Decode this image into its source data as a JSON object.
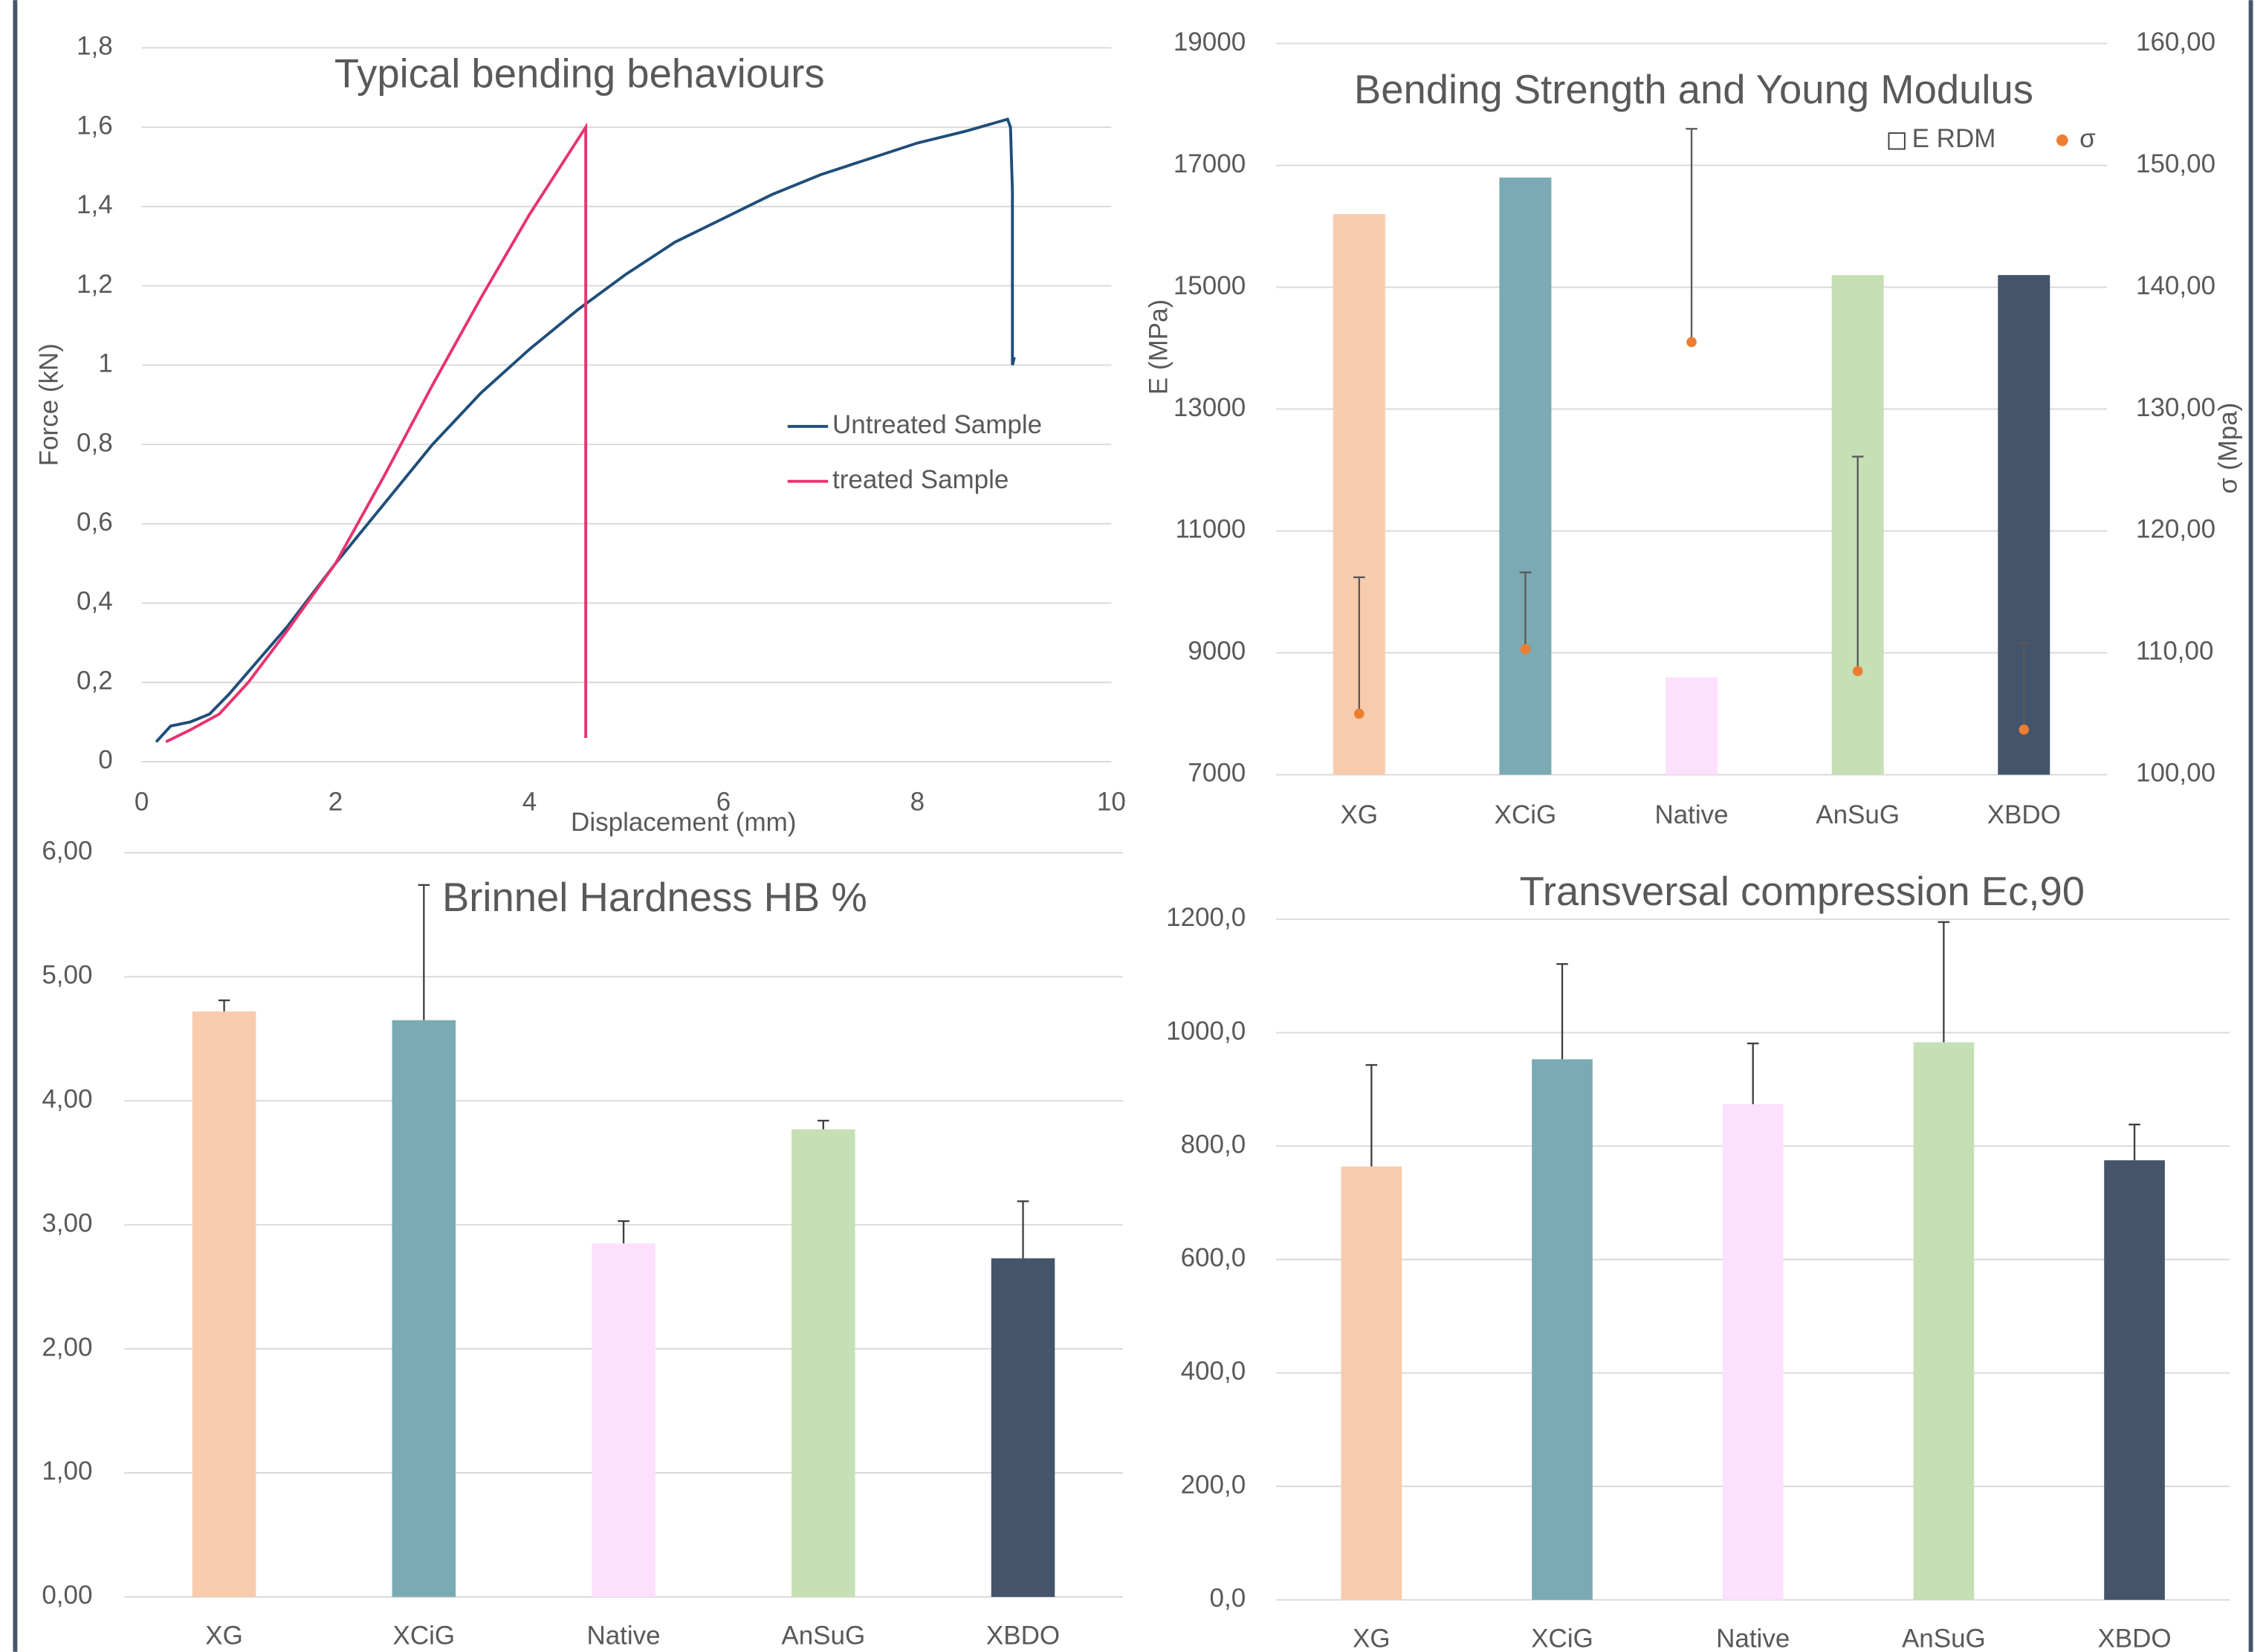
{
  "chart_data": [
    {
      "type": "line",
      "title": "Typical bending behaviours",
      "x_label": "Displacement (mm)",
      "y_label": "Force (kN)",
      "xlim": [
        0,
        10
      ],
      "xticks": [
        0,
        2,
        4,
        6,
        8,
        10
      ],
      "ylim": [
        0,
        1.8
      ],
      "yticks": [
        0,
        {
          "value": 0.2,
          "label": "0,2"
        },
        {
          "value": 0.4,
          "label": "0,4"
        },
        {
          "value": 0.6,
          "label": "0,6"
        },
        {
          "value": 0.8,
          "label": "0,8"
        },
        1,
        {
          "value": 1.2,
          "label": "1,2"
        },
        {
          "value": 1.4,
          "label": "1,4"
        },
        {
          "value": 1.6,
          "label": "1,6"
        },
        {
          "value": 1.8,
          "label": "1,8"
        }
      ],
      "grid": true,
      "legend": "right",
      "series": [
        {
          "name": "Untreated Sample",
          "color": "#1f4e79",
          "x": [
            0.15,
            0.3,
            0.5,
            0.7,
            0.9,
            1.5,
            2,
            2.5,
            3,
            3.5,
            4,
            4.5,
            5,
            5.5,
            6,
            6.5,
            7,
            7.5,
            8,
            8.5,
            8.93,
            8.96,
            8.98,
            8.98,
            9.0
          ],
          "values": [
            0.05,
            0.09,
            0.1,
            0.12,
            0.17,
            0.34,
            0.5,
            0.65,
            0.8,
            0.93,
            1.04,
            1.14,
            1.23,
            1.31,
            1.37,
            1.43,
            1.48,
            1.52,
            1.56,
            1.59,
            1.62,
            1.6,
            1.44,
            1.0,
            1.02
          ]
        },
        {
          "name": "treated Sample",
          "color": "#e8336e",
          "x": [
            0.25,
            0.5,
            0.8,
            1.1,
            1.5,
            2,
            2.5,
            3,
            3.5,
            4,
            4.58,
            4.58
          ],
          "values": [
            0.05,
            0.08,
            0.12,
            0.2,
            0.33,
            0.5,
            0.72,
            0.95,
            1.17,
            1.38,
            1.6,
            0.06
          ]
        }
      ]
    },
    {
      "type": "combo",
      "title": "Bending Strength and Young Modulus",
      "y_label": "E (MPa)",
      "y2_label": "σ (Mpa)",
      "categories": [
        "XG",
        "XCiG",
        "Native",
        "AnSuG",
        "XBDO"
      ],
      "ylim": [
        7000,
        19000
      ],
      "yticks": [
        7000,
        9000,
        11000,
        13000,
        15000,
        17000,
        19000
      ],
      "y2lim": [
        100,
        160
      ],
      "y2ticks": [
        {
          "value": 100,
          "label": "100,00"
        },
        {
          "value": 110,
          "label": "110,00"
        },
        {
          "value": 120,
          "label": "120,00"
        },
        {
          "value": 130,
          "label": "130,00"
        },
        {
          "value": 140,
          "label": "140,00"
        },
        {
          "value": 150,
          "label": "150,00"
        },
        {
          "value": 160,
          "label": "160,00"
        }
      ],
      "grid": true,
      "legend": "top-right",
      "series": [
        {
          "name": "E RDM",
          "type": "bar",
          "colors": [
            "#f8cbad",
            "#7aaab4",
            "#fde0fd",
            "#c5e0b4",
            "#44546a"
          ],
          "values": [
            16200,
            16800,
            8600,
            15200,
            15200
          ]
        },
        {
          "name": "σ",
          "type": "scatter",
          "axis": "y2",
          "color": "#ed7d31",
          "values": [
            105.0,
            110.3,
            135.5,
            108.5,
            103.7
          ],
          "errors": [
            11.2,
            6.3,
            17.5,
            17.6,
            7.1
          ]
        }
      ]
    },
    {
      "type": "bar",
      "title": "Brinnel Hardness HB %",
      "categories": [
        "XG",
        "XCiG",
        "Native",
        "AnSuG",
        "XBDO"
      ],
      "values": [
        4.72,
        4.65,
        2.85,
        3.77,
        2.73
      ],
      "errors": [
        0.09,
        1.09,
        0.18,
        0.07,
        0.46
      ],
      "colors": [
        "#f8cbad",
        "#7aaab4",
        "#fde0fd",
        "#c5e0b4",
        "#44546a"
      ],
      "ylim": [
        0,
        6
      ],
      "yticks": [
        {
          "value": 0,
          "label": "0,00"
        },
        {
          "value": 1,
          "label": "1,00"
        },
        {
          "value": 2,
          "label": "2,00"
        },
        {
          "value": 3,
          "label": "3,00"
        },
        {
          "value": 4,
          "label": "4,00"
        },
        {
          "value": 5,
          "label": "5,00"
        },
        {
          "value": 6,
          "label": "6,00"
        }
      ],
      "grid": true
    },
    {
      "type": "bar",
      "title": "Transversal compression Ec,90",
      "categories": [
        "XG",
        "XCiG",
        "Native",
        "AnSuG",
        "XBDO"
      ],
      "values": [
        764,
        953,
        874,
        983,
        775
      ],
      "errors": [
        179,
        168,
        107,
        212,
        63
      ],
      "colors": [
        "#f8cbad",
        "#7aaab4",
        "#fde0fd",
        "#c5e0b4",
        "#44546a"
      ],
      "ylim": [
        0,
        1200
      ],
      "yticks": [
        {
          "value": 0,
          "label": "0,0"
        },
        {
          "value": 200,
          "label": "200,0"
        },
        {
          "value": 400,
          "label": "400,0"
        },
        {
          "value": 600,
          "label": "600,0"
        },
        {
          "value": 800,
          "label": "800,0"
        },
        {
          "value": 1000,
          "label": "1000,0"
        },
        {
          "value": 1200,
          "label": "1200,0"
        }
      ],
      "grid": true
    }
  ]
}
